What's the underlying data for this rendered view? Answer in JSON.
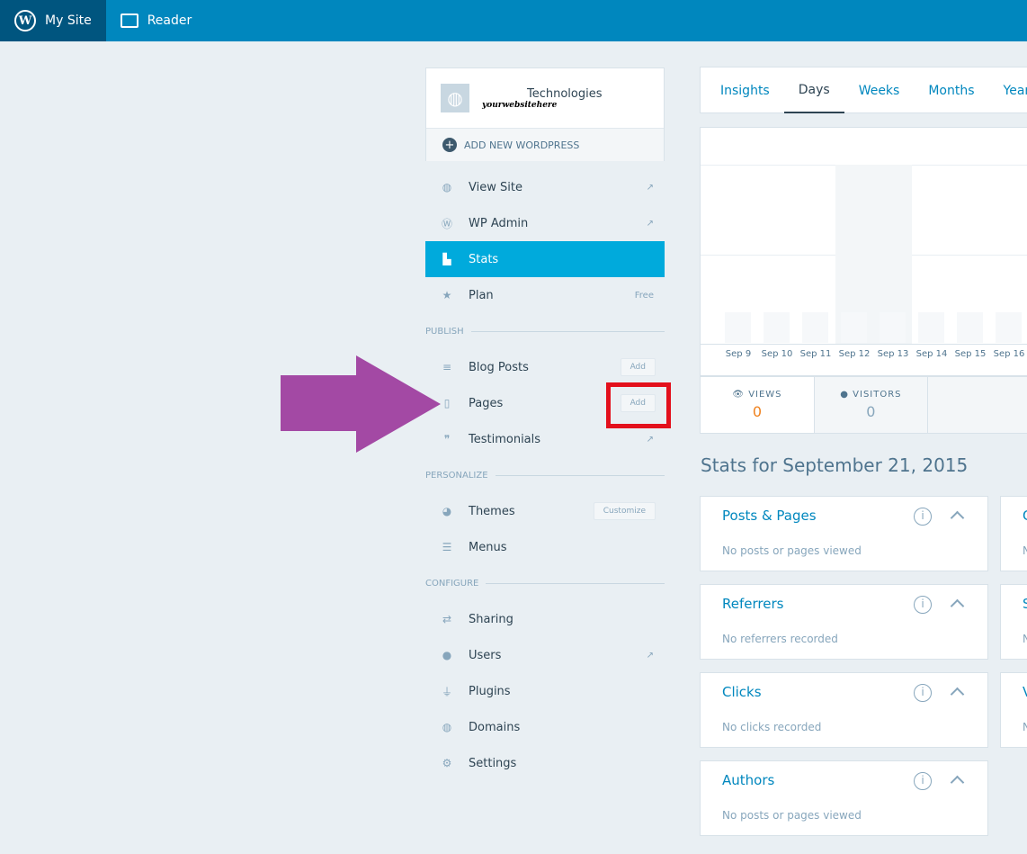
{
  "topbar": {
    "my_site": "My Site",
    "reader": "Reader"
  },
  "site": {
    "name": "Technologies",
    "url": "yourwebsitehere",
    "add_new": "ADD NEW WORDPRESS"
  },
  "menu": {
    "view_site": "View Site",
    "wp_admin": "WP Admin",
    "stats": "Stats",
    "plan": "Plan",
    "plan_badge": "Free",
    "publish": "PUBLISH",
    "blog_posts": "Blog Posts",
    "pages": "Pages",
    "add": "Add",
    "testimonials": "Testimonials",
    "personalize": "PERSONALIZE",
    "themes": "Themes",
    "customize": "Customize",
    "menus": "Menus",
    "configure": "CONFIGURE",
    "sharing": "Sharing",
    "users": "Users",
    "plugins": "Plugins",
    "domains": "Domains",
    "settings": "Settings"
  },
  "tabs": [
    "Insights",
    "Days",
    "Weeks",
    "Months",
    "Years"
  ],
  "chart_data": {
    "type": "bar",
    "categories": [
      "Sep 9",
      "Sep 10",
      "Sep 11",
      "Sep 12",
      "Sep 13",
      "Sep 14",
      "Sep 15",
      "Sep 16"
    ],
    "values": [
      0,
      0,
      0,
      0,
      0,
      0,
      0,
      0
    ],
    "highlighted": "Sep 12"
  },
  "summary": {
    "views_label": "VIEWS",
    "views": "0",
    "visitors_label": "VISITORS",
    "visitors": "0"
  },
  "heading": "Stats for September 21, 2015",
  "modules": [
    {
      "title": "Posts & Pages",
      "empty": "No posts or pages viewed"
    },
    {
      "title": "Referrers",
      "empty": "No referrers recorded"
    },
    {
      "title": "Clicks",
      "empty": "No clicks recorded"
    },
    {
      "title": "Authors",
      "empty": "No posts or pages viewed"
    }
  ],
  "right_modules": [
    {
      "title": "C",
      "empty": "N"
    },
    {
      "title": "S",
      "empty": "N"
    },
    {
      "title": "V",
      "empty": "N"
    }
  ],
  "colors": {
    "topbar": "#0087be",
    "selected": "#00aadc",
    "annotation_arrow": "#a349a4",
    "annotation_box": "#e3101c"
  }
}
